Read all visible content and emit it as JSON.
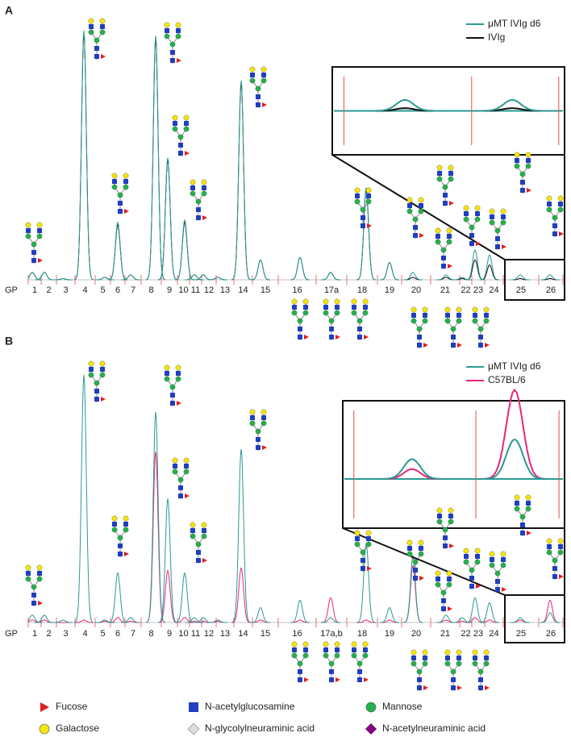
{
  "chart_data": [
    {
      "type": "chromatogram",
      "panel_label": "A",
      "x_label": "GP",
      "categories": [
        "1",
        "2",
        "3",
        "4",
        "5",
        "6",
        "7",
        "8",
        "9",
        "10",
        "11",
        "12",
        "13",
        "14",
        "15",
        "16",
        "17a",
        "18",
        "19",
        "20",
        "21",
        "22",
        "23",
        "24",
        "25",
        "26"
      ],
      "series": [
        {
          "name": "μMT IVIg d6",
          "color": "#2a9a93",
          "values": [
            3,
            3,
            0.5,
            100,
            1,
            23,
            2,
            98,
            49,
            24,
            2,
            2,
            1,
            80,
            8,
            9,
            3,
            37,
            7,
            3,
            2,
            1,
            12,
            10,
            2,
            2
          ]
        },
        {
          "name": "IVIg",
          "color": "#111111",
          "values": [
            3,
            3,
            0.5,
            99,
            1,
            22,
            2,
            97,
            48,
            23,
            2,
            2,
            1,
            79,
            8,
            9,
            3,
            36,
            7,
            1,
            1,
            0.5,
            8,
            6,
            0.5,
            0.5
          ]
        }
      ]
    },
    {
      "type": "chromatogram",
      "panel_label": "B",
      "x_label": "GP",
      "categories": [
        "1",
        "2",
        "3",
        "4",
        "5",
        "6",
        "7",
        "8",
        "9",
        "10",
        "11",
        "12",
        "13",
        "14",
        "15",
        "16",
        "17a,b",
        "18",
        "19",
        "20",
        "21",
        "22",
        "23",
        "24",
        "25",
        "26"
      ],
      "series": [
        {
          "name": "μMT IVIg d6",
          "color": "#2a9a93",
          "values": [
            3,
            3,
            1,
            100,
            1,
            20,
            2,
            85,
            50,
            20,
            2,
            2,
            1,
            70,
            6,
            9,
            2,
            32,
            6,
            27,
            3,
            2,
            10,
            8,
            2,
            4
          ]
        },
        {
          "name": "C57BL/6",
          "color": "#e8267a",
          "values": [
            1,
            1,
            0,
            1,
            0.5,
            2,
            0.5,
            69,
            21,
            2,
            0.5,
            0.5,
            0.5,
            22,
            1,
            1,
            10,
            1,
            1,
            23,
            1,
            0.5,
            2,
            1,
            1,
            9
          ]
        }
      ]
    }
  ],
  "symbol_legend": [
    "Fucose",
    "Galactose",
    "N-acetylglucosamine",
    "N-glycolylneuraminic acid",
    "Mannose",
    "N-acetylneuraminic acid"
  ]
}
